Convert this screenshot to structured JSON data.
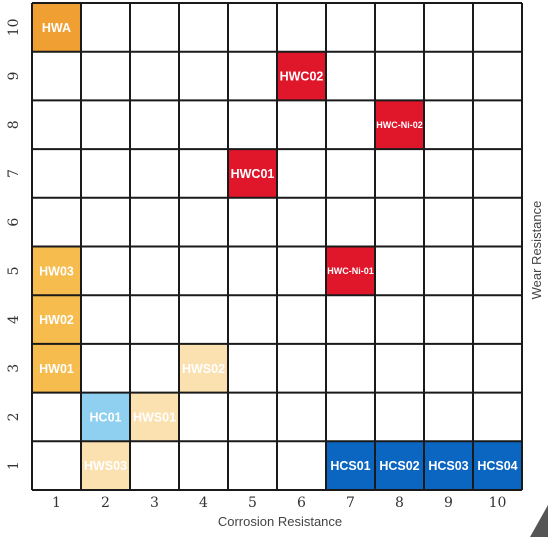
{
  "chart_data": {
    "type": "heatmap",
    "xlabel": "Corrosion Resistance",
    "ylabel": "Wear Resistance",
    "x_ticks": [
      "1",
      "2",
      "3",
      "4",
      "5",
      "6",
      "7",
      "8",
      "9",
      "10"
    ],
    "y_ticks": [
      "1",
      "2",
      "3",
      "4",
      "5",
      "6",
      "7",
      "8",
      "9",
      "10"
    ],
    "xlim": [
      1,
      10
    ],
    "ylim": [
      1,
      10
    ],
    "grid": true,
    "cells": [
      {
        "label": "HWA",
        "x": 1,
        "y": 10,
        "color": "#F0A033",
        "text_color": "#ffffff"
      },
      {
        "label": "HWC02",
        "x": 6,
        "y": 9,
        "color": "#E0162B",
        "text_color": "#ffffff"
      },
      {
        "label": "HWC-Ni-02",
        "x": 8,
        "y": 8,
        "color": "#E0162B",
        "text_color": "#ffffff"
      },
      {
        "label": "HWC01",
        "x": 5,
        "y": 7,
        "color": "#E0162B",
        "text_color": "#ffffff"
      },
      {
        "label": "HW03",
        "x": 1,
        "y": 5,
        "color": "#F6BC4E",
        "text_color": "#2b2b2b"
      },
      {
        "label": "HWC-Ni-01",
        "x": 7,
        "y": 5,
        "color": "#E0162B",
        "text_color": "#ffffff"
      },
      {
        "label": "HW02",
        "x": 1,
        "y": 4,
        "color": "#F6BC4E",
        "text_color": "#2b2b2b"
      },
      {
        "label": "HW01",
        "x": 1,
        "y": 3,
        "color": "#F6BC4E",
        "text_color": "#2b2b2b"
      },
      {
        "label": "HWS02",
        "x": 4,
        "y": 3,
        "color": "#FBE0B0",
        "text_color": "#2b2b2b"
      },
      {
        "label": "HC01",
        "x": 2,
        "y": 2,
        "color": "#8FCFF0",
        "text_color": "#2b2b2b"
      },
      {
        "label": "HWS01",
        "x": 3,
        "y": 2,
        "color": "#FBE0B0",
        "text_color": "#2b2b2b"
      },
      {
        "label": "HWS03",
        "x": 2,
        "y": 1,
        "color": "#FBE0B0",
        "text_color": "#2b2b2b"
      },
      {
        "label": "HCS01",
        "x": 7,
        "y": 1,
        "color": "#0B66C2",
        "text_color": "#ffffff"
      },
      {
        "label": "HCS02",
        "x": 8,
        "y": 1,
        "color": "#0B66C2",
        "text_color": "#ffffff"
      },
      {
        "label": "HCS03",
        "x": 9,
        "y": 1,
        "color": "#0B66C2",
        "text_color": "#ffffff"
      },
      {
        "label": "HCS04",
        "x": 10,
        "y": 1,
        "color": "#0B66C2",
        "text_color": "#ffffff"
      }
    ]
  },
  "colors": {
    "grid": "#1a1a1a",
    "corner_marker": "#555555"
  }
}
